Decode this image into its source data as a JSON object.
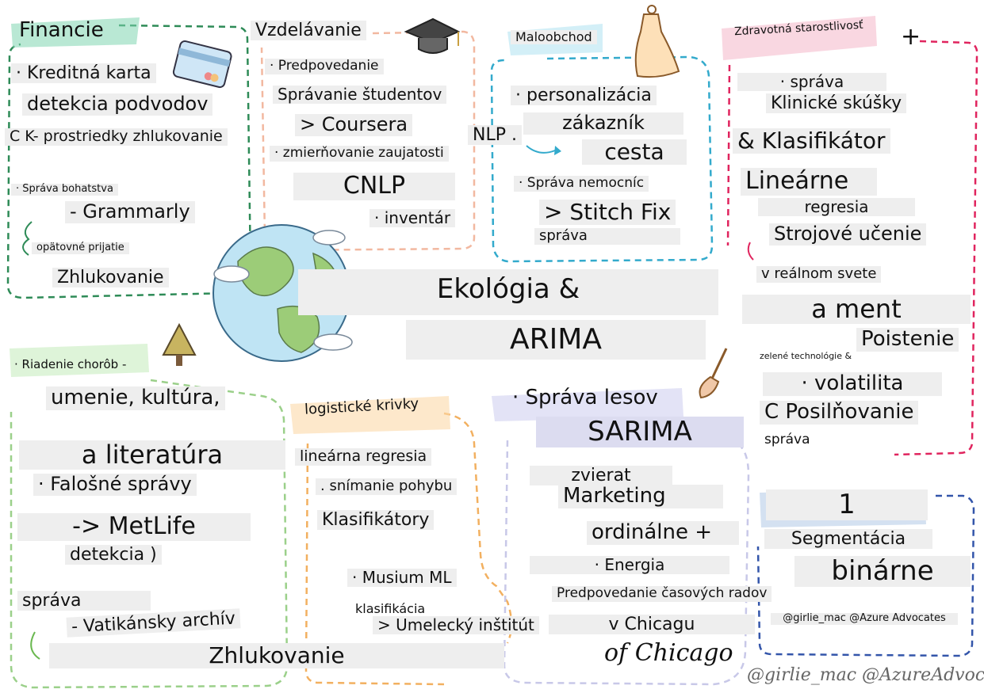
{
  "center": {
    "line1": "Ekológia &",
    "line2": "ARIMA"
  },
  "finance": {
    "title": "Financie",
    "l1": "· Kreditná karta",
    "l2": "detekcia podvodov",
    "l3": "C K- prostriedky zhlukovanie",
    "l4": "· Správa bohatstva",
    "l5": "- Grammarly",
    "l6": "opätovné prijatie",
    "l7": "Zhlukovanie"
  },
  "education": {
    "title": "Vzdelávanie",
    "l1": "· Predpovedanie",
    "l2": "Správanie študentov",
    "l3": "> Coursera",
    "l4": "· zmierňovanie zaujatosti",
    "l5": "CNLP",
    "l6": "· inventár"
  },
  "retail": {
    "title": "Maloobchod",
    "l1": "· personalizácia",
    "l2": "zákazník",
    "l3": "cesta",
    "nlp": "NLP .",
    "l4": "· Správa nemocníc",
    "l5": "> Stitch Fix",
    "l6": "správa"
  },
  "health": {
    "title": "Zdravotná starostlivosť",
    "plus": "+",
    "l1": "· správa",
    "l2": "Klinické skúšky",
    "l3": "& Klasifikátor",
    "l4": "Lineárne",
    "l5": "regresia",
    "l6": "Strojové učenie",
    "l7": "v reálnom svete",
    "l8": "a ment",
    "l9": "Poistenie",
    "l10": "zelené technológie &",
    "l11": "· volatilita",
    "l12": "C Posilňovanie",
    "l13": "správa"
  },
  "arts": {
    "l1": "· Riadenie chorôb -",
    "l2": "umenie, kultúra,",
    "l3": "a literatúra",
    "l4": "· Falošné správy",
    "l5": "-> MetLife",
    "l6": "detekcia )",
    "l7": "správa",
    "l8": "- Vatikánsky archív",
    "l9": "Zhlukovanie"
  },
  "logistics": {
    "title": "logistické krivky",
    "l1": "lineárna regresia",
    "l2": ". snímanie pohybu",
    "l3": "Klasifikátory",
    "l4": "· Musium ML",
    "l5": "klasifikácia",
    "l6": "> Umelecký inštitút"
  },
  "forest": {
    "l1": "· Správa lesov",
    "l2": "SARIMA",
    "l3": "zvierat",
    "l4": "Marketing",
    "l5": "ordinálne +",
    "l6": "· Energia",
    "l7": "Predpovedanie časových radov",
    "l8": "v Chicagu",
    "l9": "of Chicago"
  },
  "marketing": {
    "l1": "1",
    "l2": "Segmentácia",
    "l3": "binárne",
    "credit": "@girlie_mac @Azure Advocates"
  },
  "signature": "@girlie_mac @AzureAdvocates",
  "colors": {
    "finance": "#2e8b57",
    "education": "#f2b8a0",
    "retail": "#33aacc",
    "health": "#e0245e",
    "arts": "#9bd08a",
    "logistics": "#f2b060",
    "forest": "#c8c8e8",
    "marketing": "#3355aa"
  }
}
